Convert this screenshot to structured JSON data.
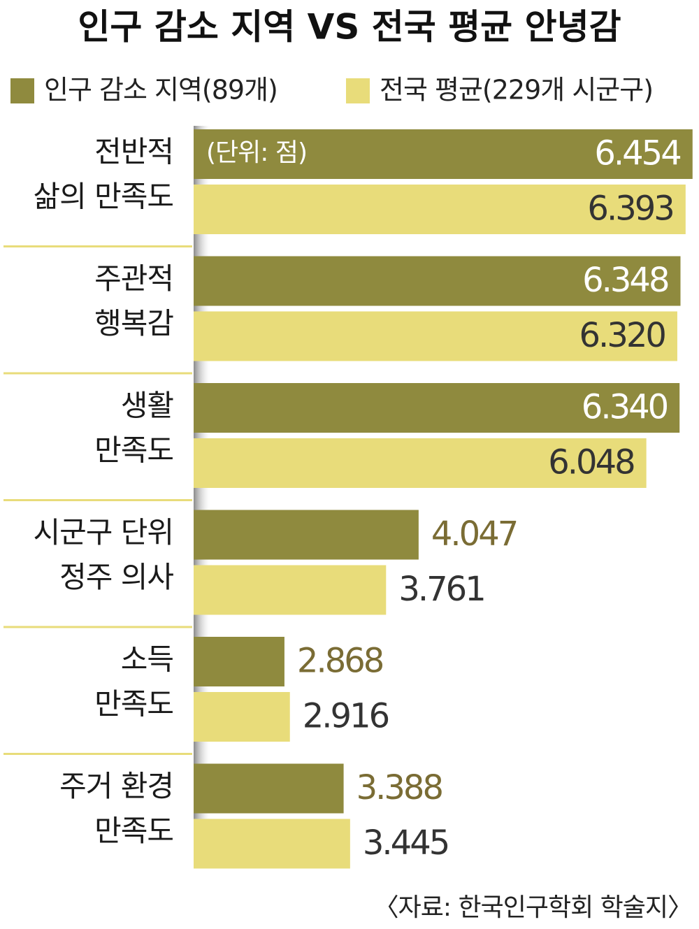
{
  "chart_data": {
    "type": "bar",
    "orientation": "horizontal",
    "title": "인구 감소 지역 VS 전국 평균 안녕감",
    "unit_note": "(단위: 점)",
    "source": "〈자료: 한국인구학회 학술지〉",
    "categories": [
      [
        "전반적",
        "삶의 만족도"
      ],
      [
        "주관적",
        "행복감"
      ],
      [
        "생활",
        "만족도"
      ],
      [
        "시군구 단위",
        "정주 의사"
      ],
      [
        "소득",
        "만족도"
      ],
      [
        "주거 환경",
        "만족도"
      ]
    ],
    "series": [
      {
        "name": "인구 감소 지역(89개)",
        "color": "#8f8a3e",
        "label_color": "#7a6c34",
        "values": [
          6.454,
          6.348,
          6.34,
          4.047,
          2.868,
          3.388
        ],
        "value_labels": [
          "6.454",
          "6.348",
          "6.340",
          "4.047",
          "2.868",
          "3.388"
        ]
      },
      {
        "name": "전국 평균(229개 시군구)",
        "color": "#e8dc7a",
        "label_color": "#333333",
        "values": [
          6.393,
          6.32,
          6.048,
          3.761,
          2.916,
          3.445
        ],
        "value_labels": [
          "6.393",
          "6.320",
          "6.048",
          "3.761",
          "2.916",
          "3.445"
        ]
      }
    ],
    "xlim": [
      2.07,
      6.48
    ]
  }
}
